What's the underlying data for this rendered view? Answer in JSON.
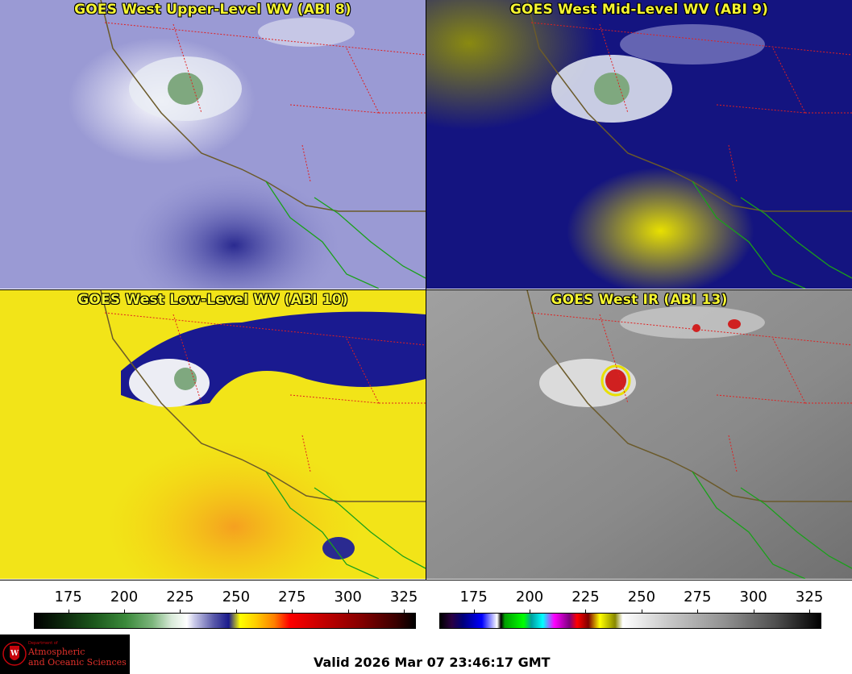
{
  "panels": [
    {
      "title": "GOES West Upper-Level WV (ABI 8)"
    },
    {
      "title": "GOES West Mid-Level WV (ABI 9)"
    },
    {
      "title": "GOES West Low-Level WV (ABI 10)"
    },
    {
      "title": "GOES West IR (ABI 13)"
    }
  ],
  "colorbars": [
    {
      "ticks": [
        "175",
        "200",
        "225",
        "250",
        "275",
        "300",
        "325"
      ],
      "min": 160,
      "max": 330
    },
    {
      "ticks": [
        "175",
        "200",
        "225",
        "250",
        "275",
        "300",
        "325"
      ],
      "min": 160,
      "max": 330
    }
  ],
  "logo": {
    "dept": "Department of",
    "line1": "Atmospheric",
    "line2": "and Oceanic Sciences"
  },
  "valid_time": "Valid 2026 Mar 07 23:46:17 GMT",
  "colors": {
    "title_text": "#f5f531",
    "coast": "#6b5a2a",
    "borders": "#e02020",
    "mexico_coast": "#1aa01a"
  }
}
